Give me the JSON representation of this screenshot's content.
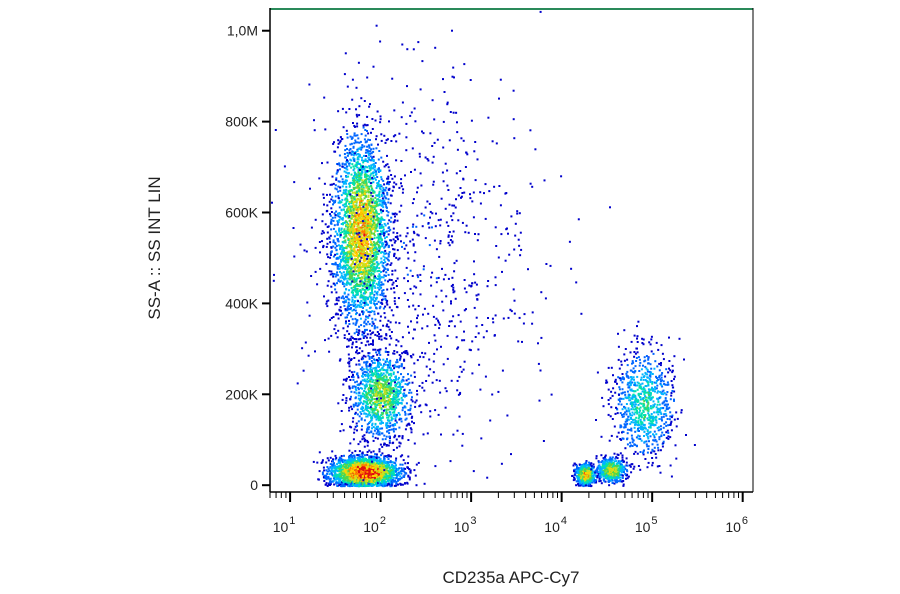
{
  "chart_data": {
    "type": "scatter",
    "title": "",
    "xlabel": "CD235a APC-Cy7",
    "ylabel": "SS-A :: SS INT LIN",
    "x_scale": "log",
    "xlim": [
      6,
      1300000
    ],
    "ylim": [
      -15000,
      1050000
    ],
    "x_ticks": [
      {
        "value": 10,
        "base": "10",
        "exp": "1"
      },
      {
        "value": 100,
        "base": "10",
        "exp": "2"
      },
      {
        "value": 1000,
        "base": "10",
        "exp": "3"
      },
      {
        "value": 10000,
        "base": "10",
        "exp": "4"
      },
      {
        "value": 100000,
        "base": "10",
        "exp": "5"
      },
      {
        "value": 1000000,
        "base": "10",
        "exp": "6"
      }
    ],
    "y_ticks": [
      {
        "value": 0,
        "label": "0"
      },
      {
        "value": 200000,
        "label": "200K"
      },
      {
        "value": 400000,
        "label": "400K"
      },
      {
        "value": 600000,
        "label": "600K"
      },
      {
        "value": 800000,
        "label": "800K"
      },
      {
        "value": 1000000,
        "label": "1,0M"
      }
    ],
    "color_scale": [
      "#0000cc",
      "#0066ff",
      "#00b4ff",
      "#00e0b0",
      "#4dd64d",
      "#c8e020",
      "#ffd200",
      "#ff7a00",
      "#e01010"
    ],
    "populations": [
      {
        "x_center": 60,
        "x_spread_decades": 0.22,
        "y_center": 560000,
        "y_spread": 150000,
        "weight": 0.3,
        "peak_density": 0.75
      },
      {
        "x_center": 65,
        "x_spread_decades": 0.28,
        "y_center": 30000,
        "y_spread": 25000,
        "weight": 0.24,
        "peak_density": 1.0
      },
      {
        "x_center": 100,
        "x_spread_decades": 0.25,
        "y_center": 200000,
        "y_spread": 70000,
        "weight": 0.12,
        "peak_density": 0.55
      },
      {
        "x_center": 18000,
        "x_spread_decades": 0.08,
        "y_center": 25000,
        "y_spread": 18000,
        "weight": 0.06,
        "peak_density": 0.8
      },
      {
        "x_center": 35000,
        "x_spread_decades": 0.12,
        "y_center": 35000,
        "y_spread": 20000,
        "weight": 0.05,
        "peak_density": 0.65
      },
      {
        "x_center": 80000,
        "x_spread_decades": 0.25,
        "y_center": 180000,
        "y_spread": 90000,
        "weight": 0.09,
        "peak_density": 0.4
      },
      {
        "x_center": 300,
        "x_spread_decades": 0.9,
        "y_center": 500000,
        "y_spread": 300000,
        "weight": 0.08,
        "peak_density": 0.1
      }
    ]
  }
}
